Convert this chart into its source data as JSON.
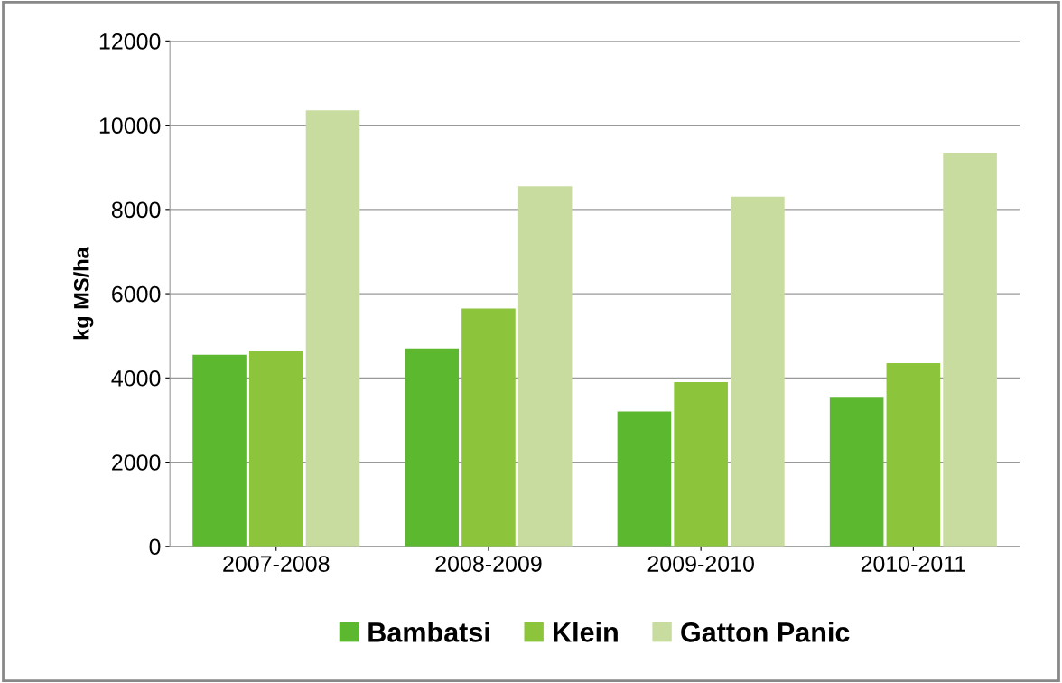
{
  "chart_data": {
    "type": "bar",
    "ylabel": "kg MS/ha",
    "categories": [
      "2007-2008",
      "2008-2009",
      "2009-2010",
      "2010-2011"
    ],
    "series": [
      {
        "name": "Bambatsi",
        "color": "#5cb82e",
        "values": [
          4550,
          4700,
          3200,
          3550
        ]
      },
      {
        "name": "Klein",
        "color": "#8cc43c",
        "values": [
          4650,
          5650,
          3900,
          4350
        ]
      },
      {
        "name": "Gatton Panic",
        "color": "#c8dca0",
        "values": [
          10350,
          8550,
          8300,
          9350
        ]
      }
    ],
    "ylim": [
      0,
      12000
    ],
    "yticks": [
      0,
      2000,
      4000,
      6000,
      8000,
      10000,
      12000
    ],
    "grid": "y",
    "legend": "bottom"
  }
}
